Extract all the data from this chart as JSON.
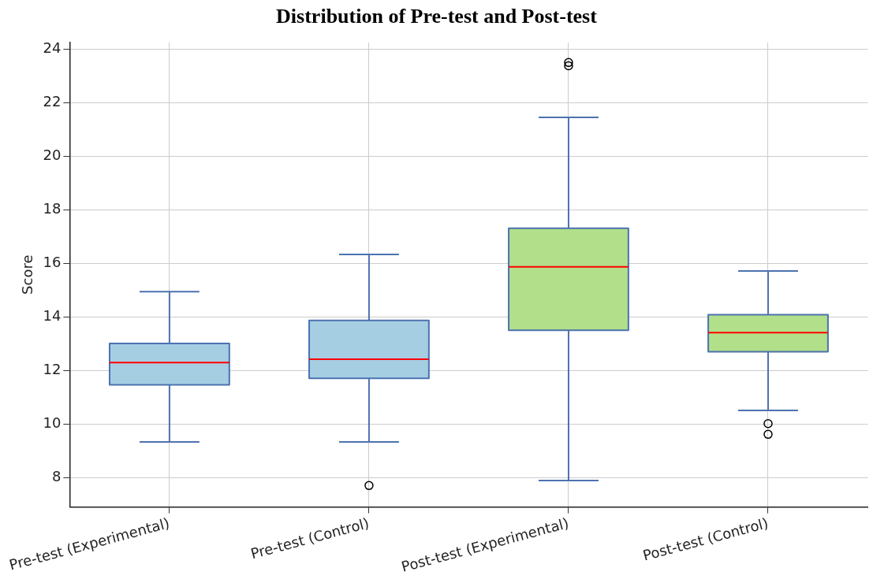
{
  "chart_data": {
    "type": "box",
    "title": "Distribution of Pre-test and Post-test",
    "ylabel": "Score",
    "categories": [
      "Pre-test (Experimental)",
      "Pre-test (Control)",
      "Post-test (Experimental)",
      "Post-test (Control)"
    ],
    "colors": [
      "#a6cee3",
      "#a6cee3",
      "#b2df8a",
      "#b2df8a"
    ],
    "boxes": [
      {
        "low": 9.35,
        "q1": 11.48,
        "median": 12.31,
        "q3": 13.02,
        "high": 14.95
      },
      {
        "low": 9.35,
        "q1": 11.72,
        "median": 12.43,
        "q3": 13.88,
        "high": 16.34,
        "outliers": [
          7.72
        ]
      },
      {
        "low": 7.91,
        "q1": 13.51,
        "median": 15.88,
        "q3": 17.32,
        "high": 21.45,
        "outliers": [
          23.5,
          23.38
        ]
      },
      {
        "low": 10.52,
        "q1": 12.71,
        "median": 13.42,
        "q3": 14.09,
        "high": 15.72,
        "outliers": [
          10.03,
          9.63
        ]
      }
    ],
    "ylim": [
      6.92,
      24.25
    ],
    "yticks": [
      8,
      10,
      12,
      14,
      16,
      18,
      20,
      22,
      24
    ],
    "grid": true
  }
}
